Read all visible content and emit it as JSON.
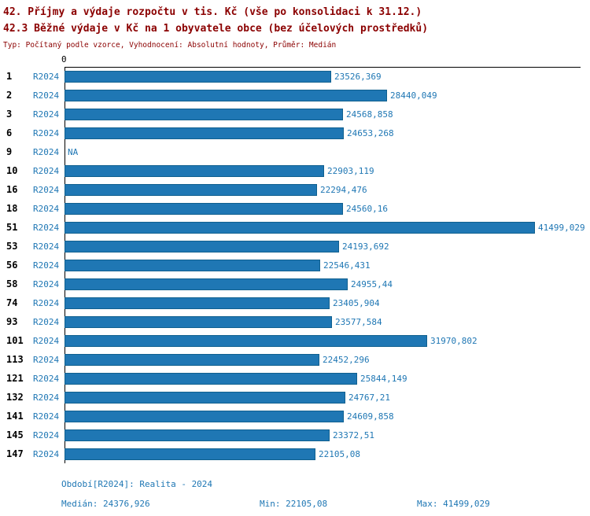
{
  "header": {
    "title1": "42. Příjmy a výdaje rozpočtu v tis. Kč (vše po konsolidaci k 31.12.)",
    "title2": "42.3 Běžné výdaje v Kč na 1 obyvatele obce (bez účelových prostředků)",
    "subtitle": "Typ: Počítaný podle vzorce, Vyhodnocení: Absolutní hodnoty, Průměr: Medián"
  },
  "chart_data": {
    "type": "bar",
    "orientation": "horizontal",
    "x_axis": {
      "zero_label": "0",
      "min": 0,
      "max": 41499.029,
      "gridlines": false
    },
    "series_name": "R2024",
    "rows": [
      {
        "id": "1",
        "period": "R2024",
        "value": 23526.369,
        "value_label": "23526,369"
      },
      {
        "id": "2",
        "period": "R2024",
        "value": 28440.049,
        "value_label": "28440,049"
      },
      {
        "id": "3",
        "period": "R2024",
        "value": 24568.858,
        "value_label": "24568,858"
      },
      {
        "id": "6",
        "period": "R2024",
        "value": 24653.268,
        "value_label": "24653,268"
      },
      {
        "id": "9",
        "period": "R2024",
        "value": null,
        "value_label": "NA"
      },
      {
        "id": "10",
        "period": "R2024",
        "value": 22903.119,
        "value_label": "22903,119"
      },
      {
        "id": "16",
        "period": "R2024",
        "value": 22294.476,
        "value_label": "22294,476"
      },
      {
        "id": "18",
        "period": "R2024",
        "value": 24560.16,
        "value_label": "24560,16"
      },
      {
        "id": "51",
        "period": "R2024",
        "value": 41499.029,
        "value_label": "41499,029"
      },
      {
        "id": "53",
        "period": "R2024",
        "value": 24193.692,
        "value_label": "24193,692"
      },
      {
        "id": "56",
        "period": "R2024",
        "value": 22546.431,
        "value_label": "22546,431"
      },
      {
        "id": "58",
        "period": "R2024",
        "value": 24955.44,
        "value_label": "24955,44"
      },
      {
        "id": "74",
        "period": "R2024",
        "value": 23405.904,
        "value_label": "23405,904"
      },
      {
        "id": "93",
        "period": "R2024",
        "value": 23577.584,
        "value_label": "23577,584"
      },
      {
        "id": "101",
        "period": "R2024",
        "value": 31970.802,
        "value_label": "31970,802"
      },
      {
        "id": "113",
        "period": "R2024",
        "value": 22452.296,
        "value_label": "22452,296"
      },
      {
        "id": "121",
        "period": "R2024",
        "value": 25844.149,
        "value_label": "25844,149"
      },
      {
        "id": "132",
        "period": "R2024",
        "value": 24767.21,
        "value_label": "24767,21"
      },
      {
        "id": "141",
        "period": "R2024",
        "value": 24609.858,
        "value_label": "24609,858"
      },
      {
        "id": "145",
        "period": "R2024",
        "value": 23372.51,
        "value_label": "23372,51"
      },
      {
        "id": "147",
        "period": "R2024",
        "value": 22105.08,
        "value_label": "22105,08"
      }
    ],
    "stats": {
      "median": 24376.926,
      "min": 22105.08,
      "max": 41499.029
    }
  },
  "footer": {
    "period_label": "Období[R2024]: Realita - 2024",
    "median_label": "Medián: 24376,926",
    "min_label": "Min: 22105,08",
    "max_label": "Max: 41499,029"
  },
  "colors": {
    "title": "#8b0000",
    "bar": "#1f77b4",
    "bar_border": "#10608f",
    "label_blue": "#1f77b4",
    "axis": "#000000"
  }
}
